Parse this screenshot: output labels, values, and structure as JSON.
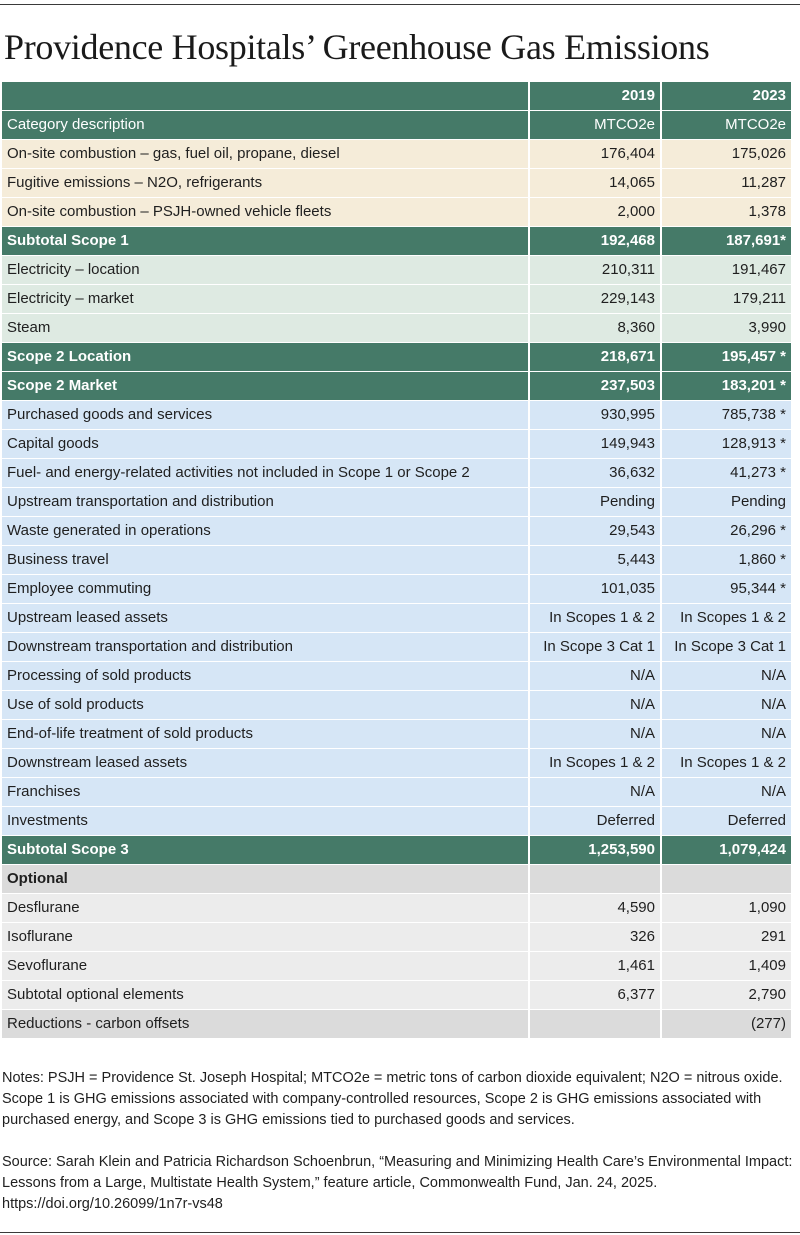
{
  "title": "Providence Hospitals’ Greenhouse Gas Emissions",
  "table": {
    "header": {
      "label": "",
      "col1": "2019",
      "col2": "2023"
    },
    "units": {
      "label": "Category description",
      "col1": "MTCO2e",
      "col2": "MTCO2e"
    },
    "rows": [
      {
        "type": "scope1",
        "label": "On-site combustion – gas, fuel oil, propane, diesel",
        "v2019": "176,404",
        "v2023": "175,026"
      },
      {
        "type": "scope1",
        "label": "Fugitive emissions – N2O, refrigerants",
        "v2019": "14,065",
        "v2023": "11,287"
      },
      {
        "type": "scope1",
        "label": "On-site combustion – PSJH-owned vehicle fleets",
        "v2019": "2,000",
        "v2023": "1,378"
      },
      {
        "type": "subtotal",
        "label": "Subtotal Scope 1",
        "v2019": "192,468",
        "v2023": "187,691*"
      },
      {
        "type": "scope2",
        "label": "Electricity – location",
        "v2019": "210,311",
        "v2023": "191,467"
      },
      {
        "type": "scope2",
        "label": "Electricity – market",
        "v2019": "229,143",
        "v2023": "179,211"
      },
      {
        "type": "scope2",
        "label": "Steam",
        "v2019": "8,360",
        "v2023": "3,990"
      },
      {
        "type": "subtotal",
        "label": "Scope 2 Location",
        "v2019": "218,671",
        "v2023": "195,457 *"
      },
      {
        "type": "subtotal",
        "label": "Scope 2 Market",
        "v2019": "237,503",
        "v2023": "183,201 *"
      },
      {
        "type": "scope3",
        "label": "Purchased goods and services",
        "v2019": "930,995",
        "v2023": "785,738 *"
      },
      {
        "type": "scope3",
        "label": "Capital goods",
        "v2019": "149,943",
        "v2023": "128,913 *"
      },
      {
        "type": "scope3",
        "label": "Fuel- and energy-related activities not included in Scope 1 or Scope 2",
        "v2019": "36,632",
        "v2023": "41,273 *"
      },
      {
        "type": "scope3",
        "label": "Upstream transportation and distribution",
        "v2019": "Pending",
        "v2023": "Pending"
      },
      {
        "type": "scope3",
        "label": "Waste generated in operations",
        "v2019": "29,543",
        "v2023": "26,296 *"
      },
      {
        "type": "scope3",
        "label": "Business travel",
        "v2019": "5,443",
        "v2023": "1,860 *"
      },
      {
        "type": "scope3",
        "label": "Employee commuting",
        "v2019": "101,035",
        "v2023": "95,344 *"
      },
      {
        "type": "scope3",
        "label": "Upstream leased assets",
        "v2019": "In Scopes 1 & 2",
        "v2023": "In Scopes 1 & 2"
      },
      {
        "type": "scope3",
        "label": "Downstream transportation and distribution",
        "v2019": "In Scope 3 Cat 1",
        "v2023": "In Scope 3 Cat 1"
      },
      {
        "type": "scope3",
        "label": "Processing of sold products",
        "v2019": "N/A",
        "v2023": "N/A"
      },
      {
        "type": "scope3",
        "label": "Use of sold products",
        "v2019": "N/A",
        "v2023": "N/A"
      },
      {
        "type": "scope3",
        "label": "End-of-life treatment of sold products",
        "v2019": "N/A",
        "v2023": "N/A"
      },
      {
        "type": "scope3",
        "label": "Downstream leased assets",
        "v2019": "In Scopes 1 & 2",
        "v2023": "In Scopes 1 & 2"
      },
      {
        "type": "scope3",
        "label": "Franchises",
        "v2019": "N/A",
        "v2023": "N/A"
      },
      {
        "type": "scope3",
        "label": "Investments",
        "v2019": "Deferred",
        "v2023": "Deferred"
      },
      {
        "type": "subtotal",
        "label": "Subtotal Scope 3",
        "v2019": "1,253,590",
        "v2023": "1,079,424"
      },
      {
        "type": "optional-header",
        "label": "Optional",
        "v2019": "",
        "v2023": ""
      },
      {
        "type": "optional",
        "label": "Desflurane",
        "v2019": "4,590",
        "v2023": "1,090"
      },
      {
        "type": "optional",
        "label": "Isoflurane",
        "v2019": "326",
        "v2023": "291"
      },
      {
        "type": "optional",
        "label": "Sevoflurane",
        "v2019": "1,461",
        "v2023": "1,409"
      },
      {
        "type": "optional",
        "label": "Subtotal optional elements",
        "v2019": "6,377",
        "v2023": "2,790"
      },
      {
        "type": "optional-last",
        "label": "Reductions - carbon offsets",
        "v2019": "",
        "v2023": "(277)"
      }
    ]
  },
  "notes": "Notes: PSJH = Providence St. Joseph Hospital; MTCO2e = metric tons of carbon dioxide equivalent; N2O = nitrous oxide. Scope 1 is GHG emissions associated with company-controlled resources, Scope 2 is GHG emissions associated with purchased energy, and Scope 3 is GHG emissions tied to purchased goods and services.",
  "source": "Source: Sarah Klein and Patricia Richardson Schoenbrun, “Measuring and Minimizing Health Care’s Environmental Impact: Lessons from a Large, Multistate Health System,” feature article, Commonwealth Fund, Jan. 24, 2025. https://doi.org/10.26099/1n7r-vs48"
}
